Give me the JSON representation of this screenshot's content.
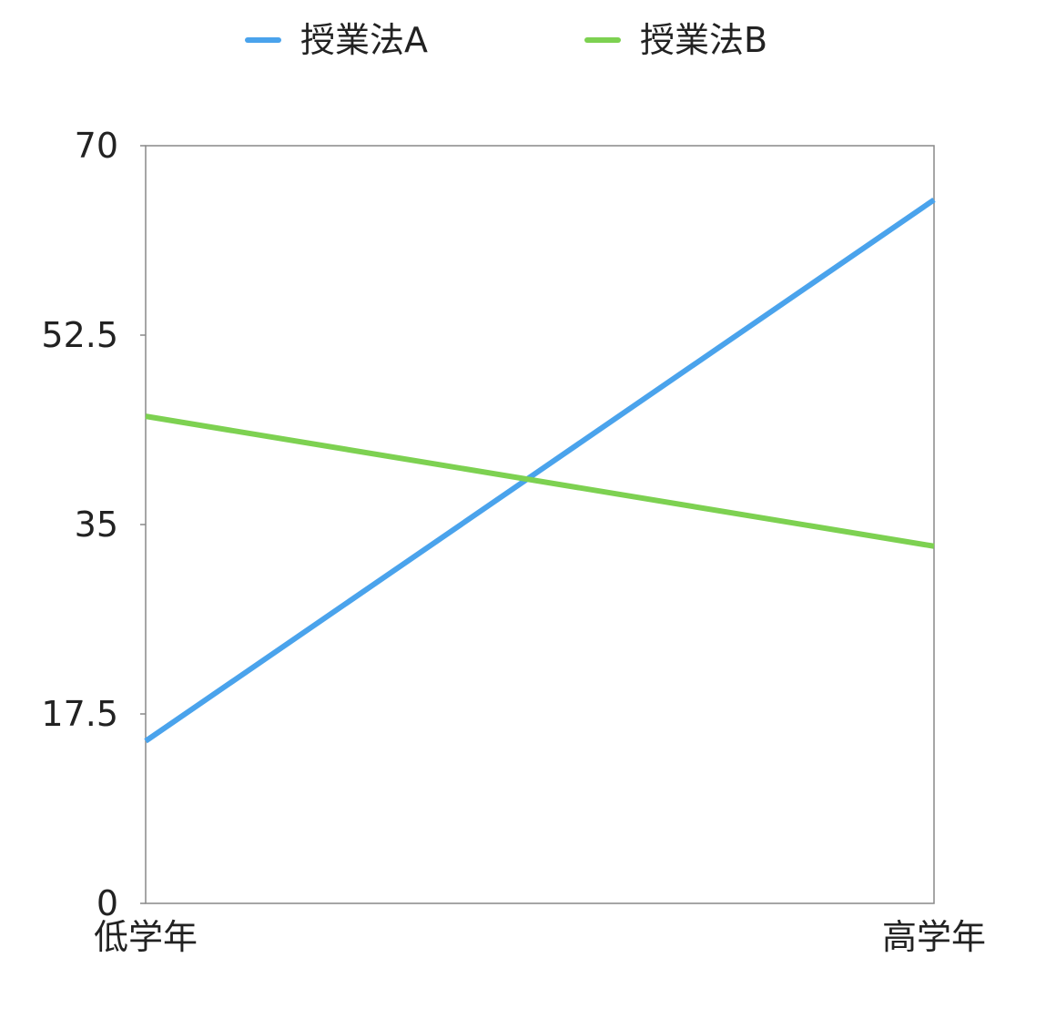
{
  "chart_data": {
    "type": "line",
    "title": "",
    "xlabel": "",
    "ylabel": "",
    "categories": [
      "低学年",
      "高学年"
    ],
    "y_ticks": [
      "0",
      "17.5",
      "35",
      "52.5",
      "70"
    ],
    "ylim": [
      0,
      70
    ],
    "grid": false,
    "legend_position": "top-center",
    "series": [
      {
        "name": "授業法A",
        "values": [
          15,
          65
        ],
        "color": "#4aa3ec"
      },
      {
        "name": "授業法B",
        "values": [
          45,
          33
        ],
        "color": "#7dd151"
      }
    ]
  }
}
